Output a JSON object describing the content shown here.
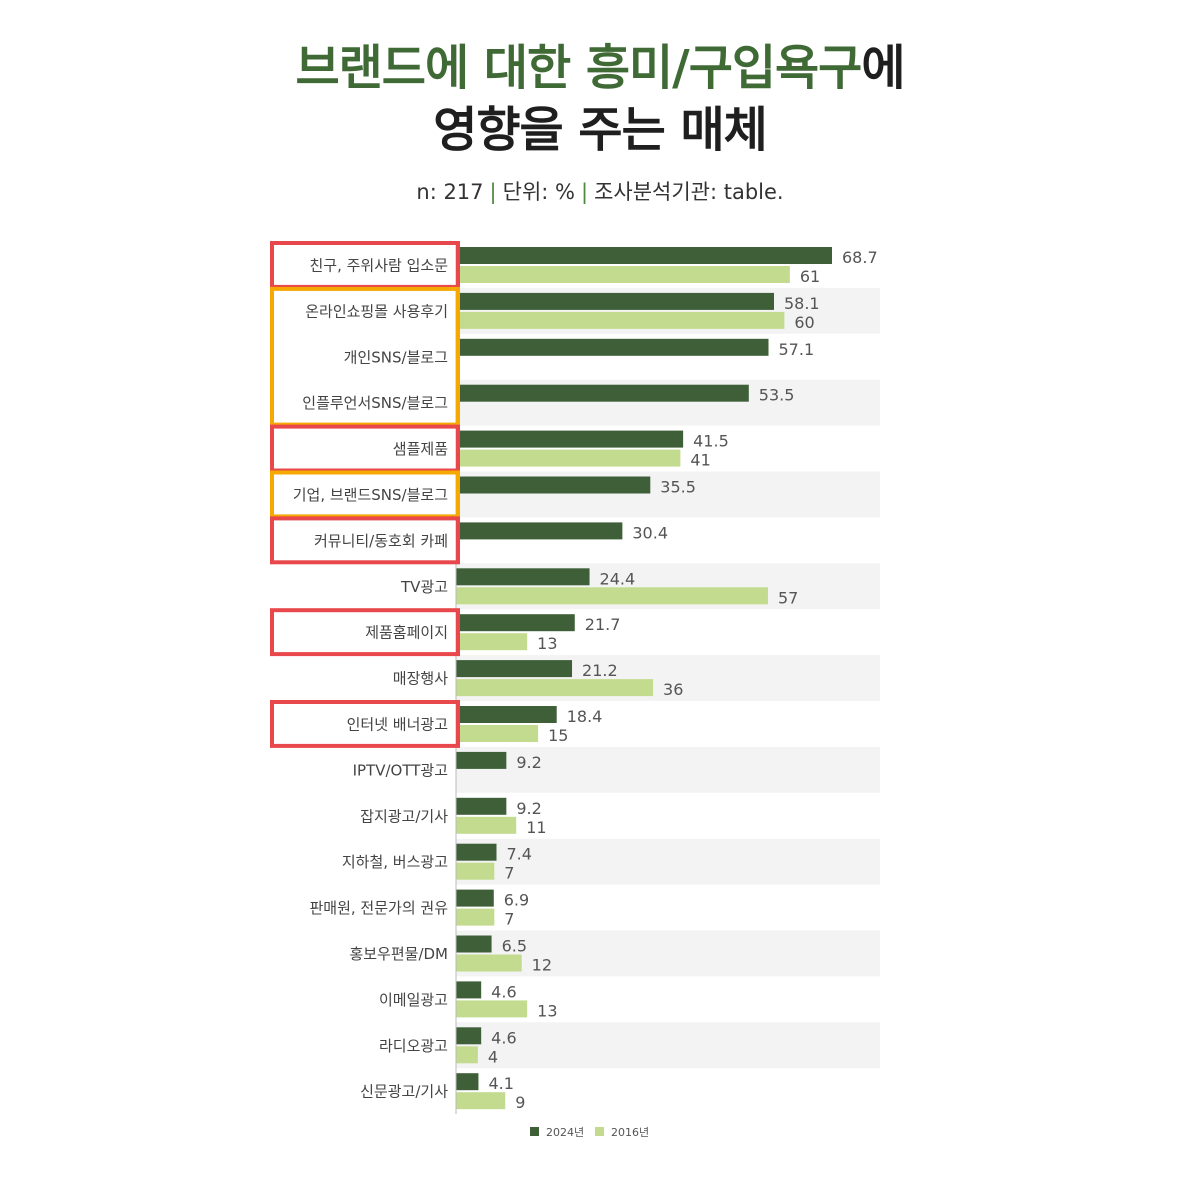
{
  "title": {
    "line1_green": "브랜드에 대한 흥미/구입욕구",
    "line1_black": "에",
    "line2": "영향을 주는 매체"
  },
  "meta": {
    "n": "n: 217",
    "unit": "단위: %",
    "agency": "조사분석기관: table."
  },
  "colors": {
    "series_2024": "#3e5f37",
    "series_2016": "#c3db8f",
    "band": "#f3f3f3",
    "highlight_red": "#e8474b",
    "highlight_orange": "#f5a800"
  },
  "chart_data": {
    "type": "bar",
    "orientation": "horizontal",
    "title": "브랜드에 대한 흥미/구입욕구에 영향을 주는 매체",
    "xlim": [
      0,
      75
    ],
    "categories": [
      "친구, 주위사람 입소문",
      "온라인쇼핑몰 사용후기",
      "개인SNS/블로그",
      "인플루언서SNS/블로그",
      "샘플제품",
      "기업, 브랜드SNS/블로그",
      "커뮤니티/동호회 카페",
      "TV광고",
      "제품홈페이지",
      "매장행사",
      "인터넷 배너광고",
      "IPTV/OTT광고",
      "잡지광고/기사",
      "지하철, 버스광고",
      "판매원, 전문가의 권유",
      "홍보우편물/DM",
      "이메일광고",
      "라디오광고",
      "신문광고/기사"
    ],
    "series": [
      {
        "name": "2024년",
        "values": [
          68.7,
          58.1,
          57.1,
          53.5,
          41.5,
          35.5,
          30.4,
          24.4,
          21.7,
          21.2,
          18.4,
          9.2,
          9.2,
          7.4,
          6.9,
          6.5,
          4.6,
          4.6,
          4.1
        ]
      },
      {
        "name": "2016년",
        "values": [
          61,
          60,
          null,
          null,
          41,
          null,
          null,
          57,
          13,
          36,
          15,
          null,
          11,
          7,
          7,
          12,
          13,
          4,
          9
        ]
      }
    ],
    "legend": "bottom-center",
    "highlights": [
      {
        "color": "red",
        "categories": [
          0
        ]
      },
      {
        "color": "orange",
        "categories": [
          1,
          2,
          3
        ]
      },
      {
        "color": "red",
        "categories": [
          4
        ]
      },
      {
        "color": "orange",
        "categories": [
          5
        ]
      },
      {
        "color": "red",
        "categories": [
          6
        ]
      },
      {
        "color": "red",
        "categories": [
          8
        ]
      },
      {
        "color": "red",
        "categories": [
          10
        ]
      }
    ]
  }
}
